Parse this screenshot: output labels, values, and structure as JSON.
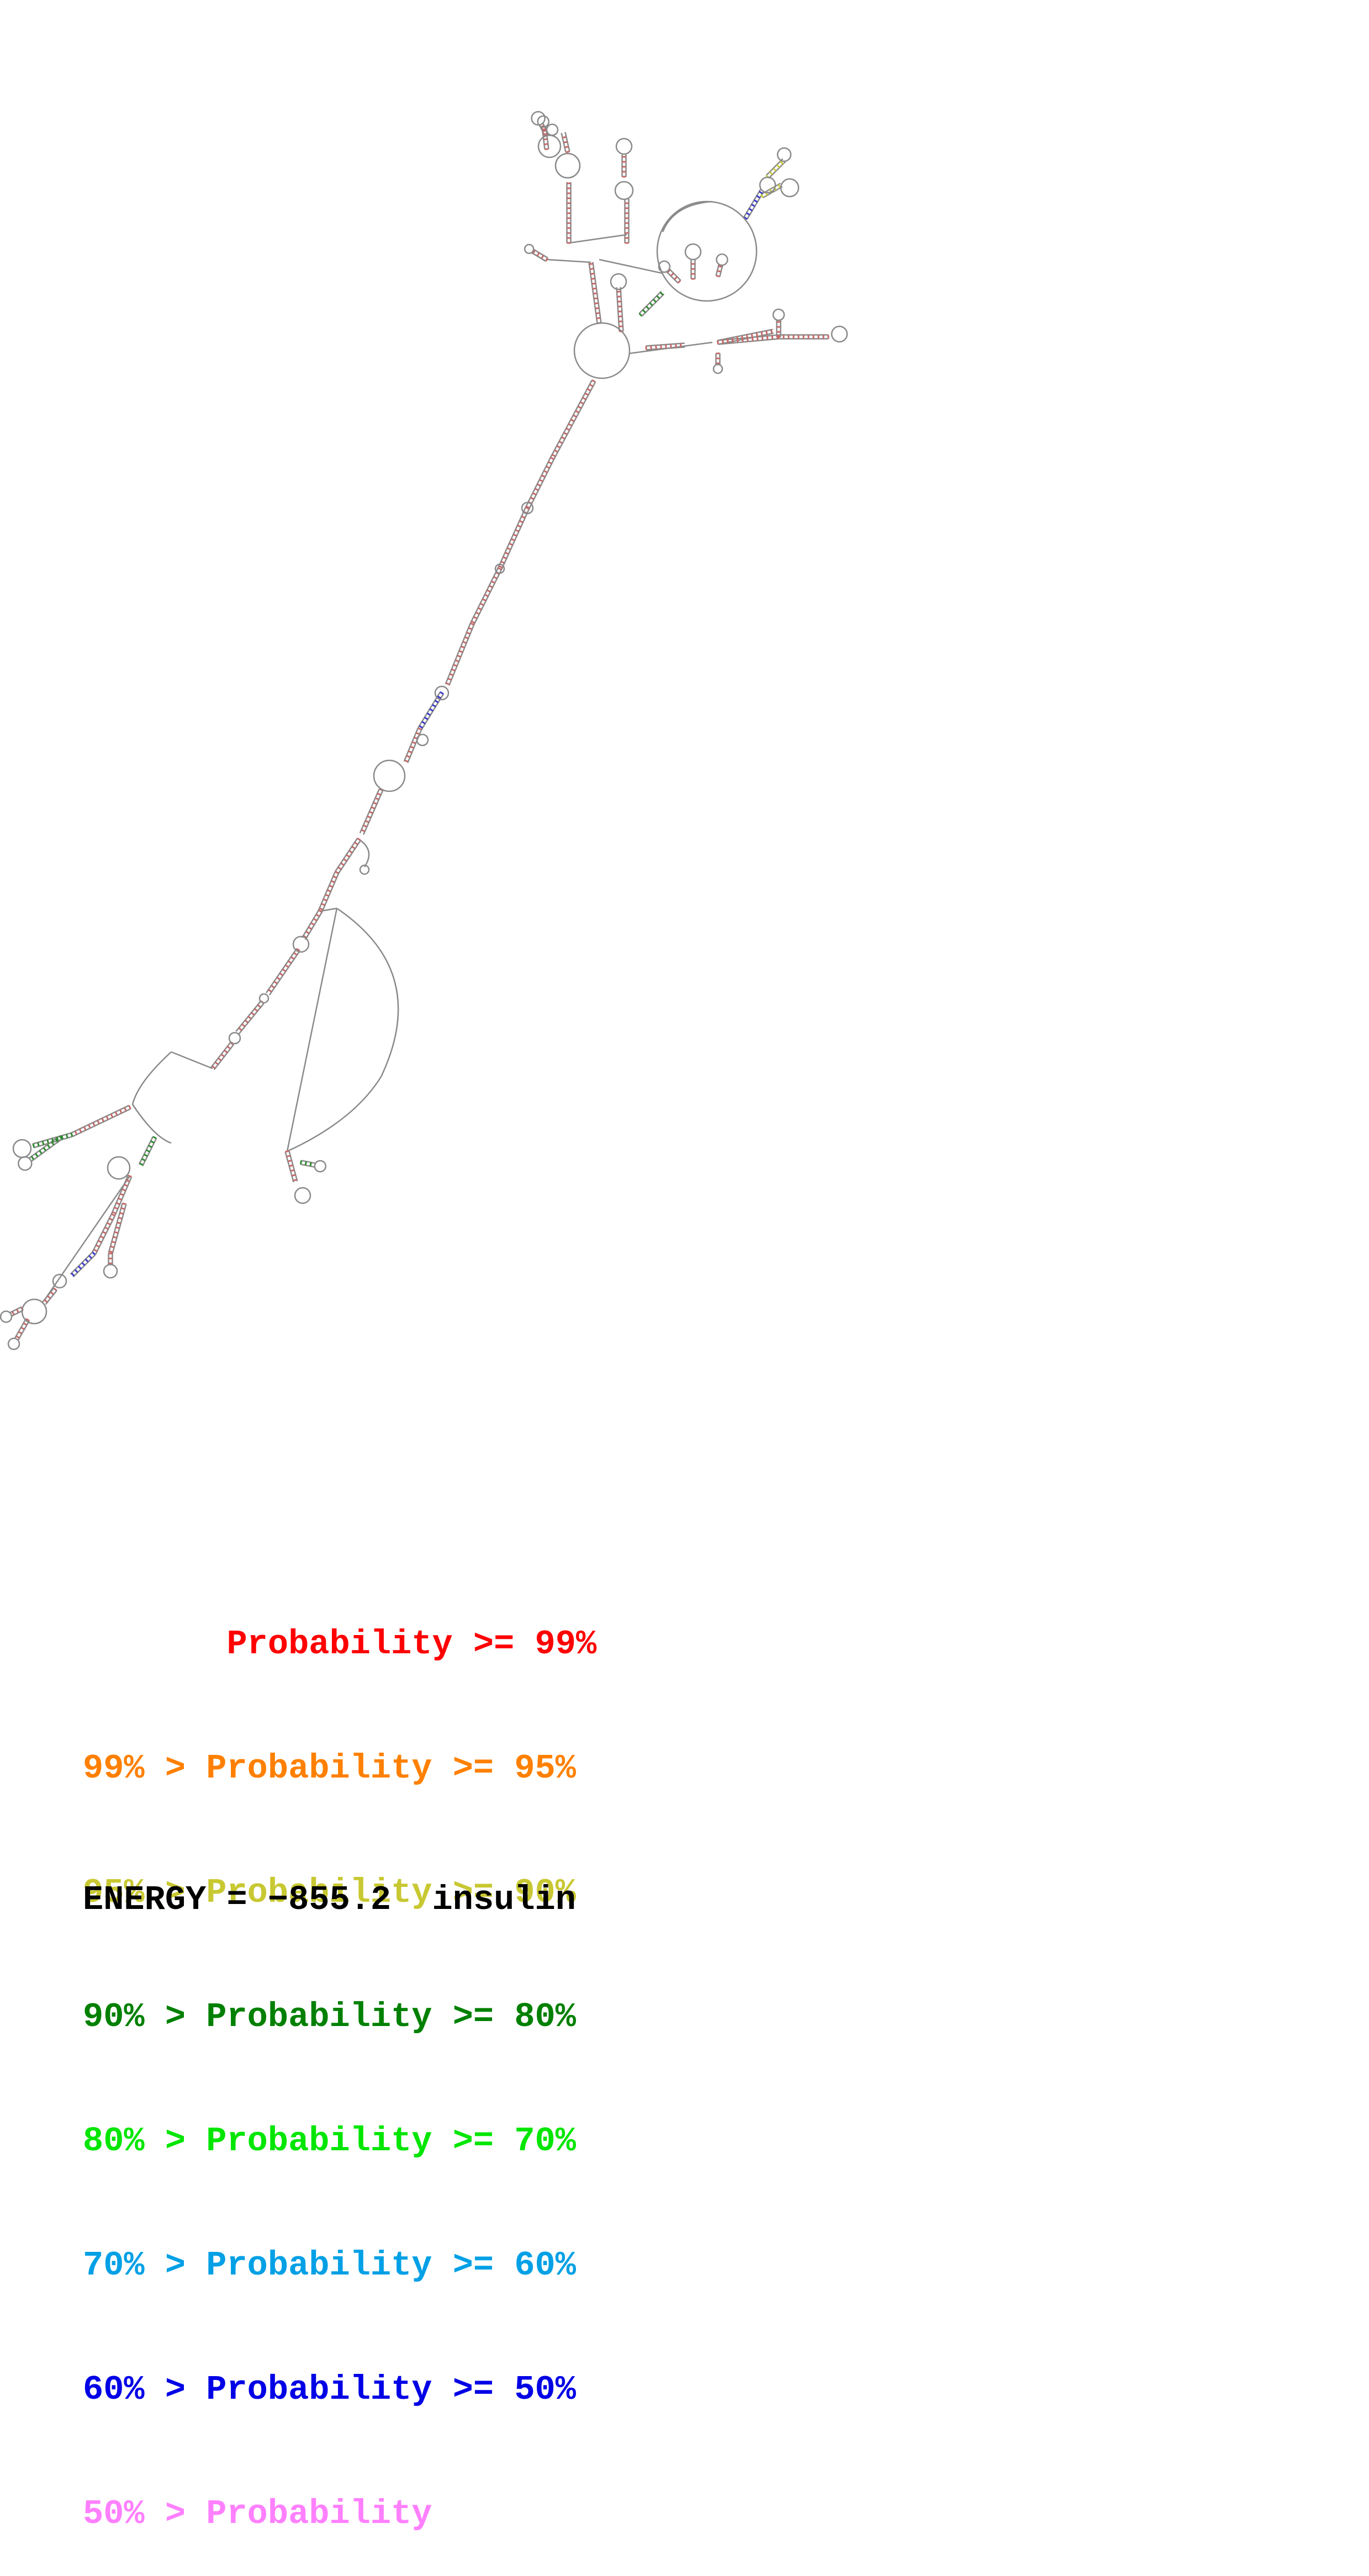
{
  "diagram": {
    "type": "rna-secondary-structure",
    "colors": {
      "backbone": "#8a8a8a",
      "pair_high": "#c46a6a",
      "pair_green": "#2e8b2e",
      "pair_blue": "#3a3acc",
      "pair_yellow": "#c9c93a"
    }
  },
  "legend": {
    "rows": [
      {
        "prefix": "       ",
        "text": "Probability >= 99%",
        "color": "#ff0000"
      },
      {
        "prefix": "99% > ",
        "text": "Probability >= 95%",
        "color": "#ff8000"
      },
      {
        "prefix": "95% > ",
        "text": "Probability >= 90%",
        "color": "#c8c832"
      },
      {
        "prefix": "90% > ",
        "text": "Probability >= 80%",
        "color": "#008000"
      },
      {
        "prefix": "80% > ",
        "text": "Probability >= 70%",
        "color": "#00e600"
      },
      {
        "prefix": "70% > ",
        "text": "Probability >= 60%",
        "color": "#00a0e6"
      },
      {
        "prefix": "60% > ",
        "text": "Probability >= 50%",
        "color": "#0000e6"
      },
      {
        "prefix": "50% > ",
        "text": "Probability",
        "color": "#ff80ff"
      }
    ]
  },
  "footer": {
    "energy_label": "ENERGY = ",
    "energy_value": "−855.2",
    "name": "insulin"
  }
}
